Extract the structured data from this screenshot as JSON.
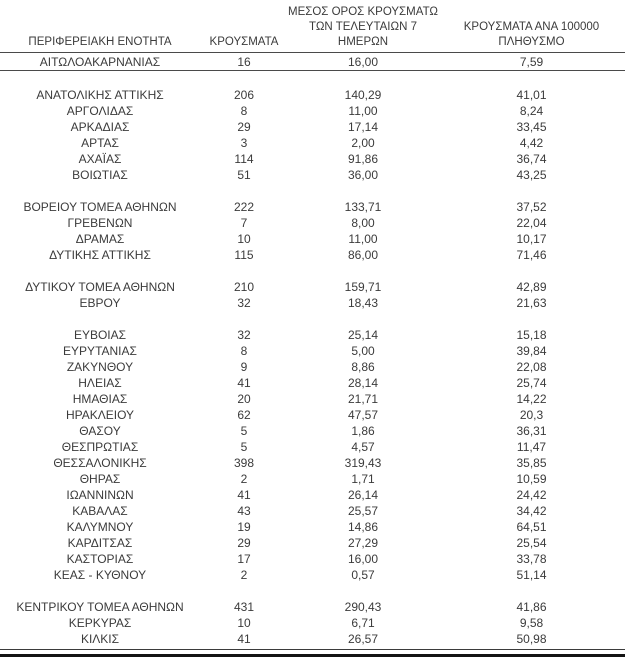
{
  "header": {
    "col1": "ΠΕΡΙΦΕΡΕΙΑΚΗ ΕΝΟΤΗΤΑ",
    "col2": "ΚΡΟΥΣΜΑΤΑ",
    "col3_lines": [
      "ΜΕΣΟΣ ΟΡΟΣ ΚΡΟΥΣΜΑΤΩΝ",
      "ΤΩΝ ΤΕΛΕΥΤΑΙΩΝ 7",
      "ΗΜΕΡΩΝ"
    ],
    "col4_lines": [
      "ΚΡΟΥΣΜΑΤΑ ΑΝΑ 100000",
      "ΠΛΗΘΥΣΜΟ"
    ]
  },
  "chart_data": {
    "type": "table",
    "title": "",
    "columns": [
      "ΠΕΡΙΦΕΡΕΙΑΚΗ ΕΝΟΤΗΤΑ",
      "ΚΡΟΥΣΜΑΤΑ",
      "ΜΕΣΟΣ ΟΡΟΣ ΚΡΟΥΣΜΑΤΩΝ ΤΩΝ ΤΕΛΕΥΤΑΙΩΝ 7 ΗΜΕΡΩΝ",
      "ΚΡΟΥΣΜΑΤΑ ΑΝΑ 100000 ΠΛΗΘΥΣΜΟ"
    ],
    "rows": [
      [
        "ΑΙΤΩΛΟΑΚΑΡΝΑΝΙΑΣ",
        "16",
        "16,00",
        "7,59"
      ],
      [
        "ΑΝΑΤΟΛΙΚΗΣ ΑΤΤΙΚΗΣ",
        "206",
        "140,29",
        "41,01"
      ],
      [
        "ΑΡΓΟΛΙΔΑΣ",
        "8",
        "11,00",
        "8,24"
      ],
      [
        "ΑΡΚΑΔΙΑΣ",
        "29",
        "17,14",
        "33,45"
      ],
      [
        "ΑΡΤΑΣ",
        "3",
        "2,00",
        "4,42"
      ],
      [
        "ΑΧΑΪΑΣ",
        "114",
        "91,86",
        "36,74"
      ],
      [
        "ΒΟΙΩΤΙΑΣ",
        "51",
        "36,00",
        "43,25"
      ],
      [
        "ΒΟΡΕΙΟΥ ΤΟΜΕΑ ΑΘΗΝΩΝ",
        "222",
        "133,71",
        "37,52"
      ],
      [
        "ΓΡΕΒΕΝΩΝ",
        "7",
        "8,00",
        "22,04"
      ],
      [
        "ΔΡΑΜΑΣ",
        "10",
        "11,00",
        "10,17"
      ],
      [
        "ΔΥΤΙΚΗΣ ΑΤΤΙΚΗΣ",
        "115",
        "86,00",
        "71,46"
      ],
      [
        "ΔΥΤΙΚΟΥ ΤΟΜΕΑ ΑΘΗΝΩΝ",
        "210",
        "159,71",
        "42,89"
      ],
      [
        "ΕΒΡΟΥ",
        "32",
        "18,43",
        "21,63"
      ],
      [
        "ΕΥΒΟΙΑΣ",
        "32",
        "25,14",
        "15,18"
      ],
      [
        "ΕΥΡΥΤΑΝΙΑΣ",
        "8",
        "5,00",
        "39,84"
      ],
      [
        "ΖΑΚΥΝΘΟΥ",
        "9",
        "8,86",
        "22,08"
      ],
      [
        "ΗΛΕΙΑΣ",
        "41",
        "28,14",
        "25,74"
      ],
      [
        "ΗΜΑΘΙΑΣ",
        "20",
        "21,71",
        "14,22"
      ],
      [
        "ΗΡΑΚΛΕΙΟΥ",
        "62",
        "47,57",
        "20,3"
      ],
      [
        "ΘΑΣΟΥ",
        "5",
        "1,86",
        "36,31"
      ],
      [
        "ΘΕΣΠΡΩΤΙΑΣ",
        "5",
        "4,57",
        "11,47"
      ],
      [
        "ΘΕΣΣΑΛΟΝΙΚΗΣ",
        "398",
        "319,43",
        "35,85"
      ],
      [
        "ΘΗΡΑΣ",
        "2",
        "1,71",
        "10,59"
      ],
      [
        "ΙΩΑΝΝΙΝΩΝ",
        "41",
        "26,14",
        "24,42"
      ],
      [
        "ΚΑΒΑΛΑΣ",
        "43",
        "25,57",
        "34,42"
      ],
      [
        "ΚΑΛΥΜΝΟΥ",
        "19",
        "14,86",
        "64,51"
      ],
      [
        "ΚΑΡΔΙΤΣΑΣ",
        "29",
        "27,29",
        "25,54"
      ],
      [
        "ΚΑΣΤΟΡΙΑΣ",
        "17",
        "16,00",
        "33,78"
      ],
      [
        "ΚΕΑΣ - ΚΥΘΝΟΥ",
        "2",
        "0,57",
        "51,14"
      ],
      [
        "ΚΕΝΤΡΙΚΟΥ ΤΟΜΕΑ ΑΘΗΝΩΝ",
        "431",
        "290,43",
        "41,86"
      ],
      [
        "ΚΕΡΚΥΡΑΣ",
        "10",
        "6,71",
        "9,58"
      ],
      [
        "ΚΙΛΚΙΣ",
        "41",
        "26,57",
        "50,98"
      ]
    ],
    "gap_before_rows": [
      1,
      7,
      11,
      13,
      29
    ],
    "rule_after_rows": [
      0
    ],
    "colors": {
      "text": "#3b3b3b",
      "rule": "#4a4a4a",
      "bottom_border": "#141414",
      "background": "#ffffff"
    }
  }
}
